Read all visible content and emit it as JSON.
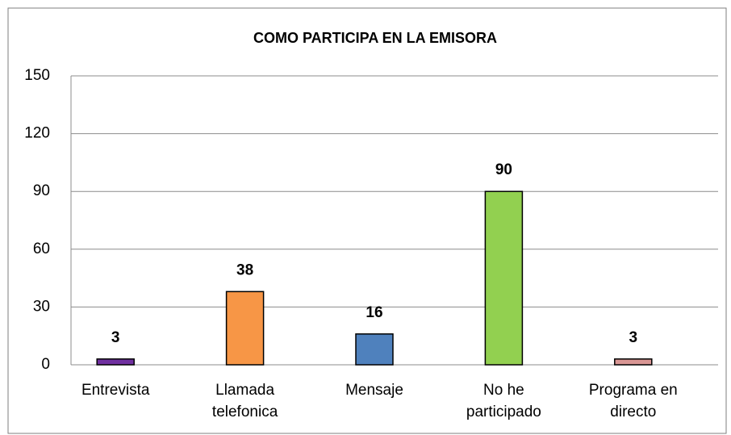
{
  "chart_data": {
    "type": "bar",
    "title": "COMO PARTICIPA EN LA EMISORA",
    "categories": [
      "Entrevista",
      "Llamada telefonica",
      "Mensaje",
      "No he participado",
      "Programa en directo"
    ],
    "values": [
      3,
      38,
      16,
      90,
      3
    ],
    "colors": [
      "#7030a0",
      "#f79646",
      "#4f81bd",
      "#92d050",
      "#d99694"
    ],
    "ylim": [
      0,
      150
    ],
    "yticks": [
      0,
      30,
      60,
      90,
      120,
      150
    ],
    "grid": true
  }
}
